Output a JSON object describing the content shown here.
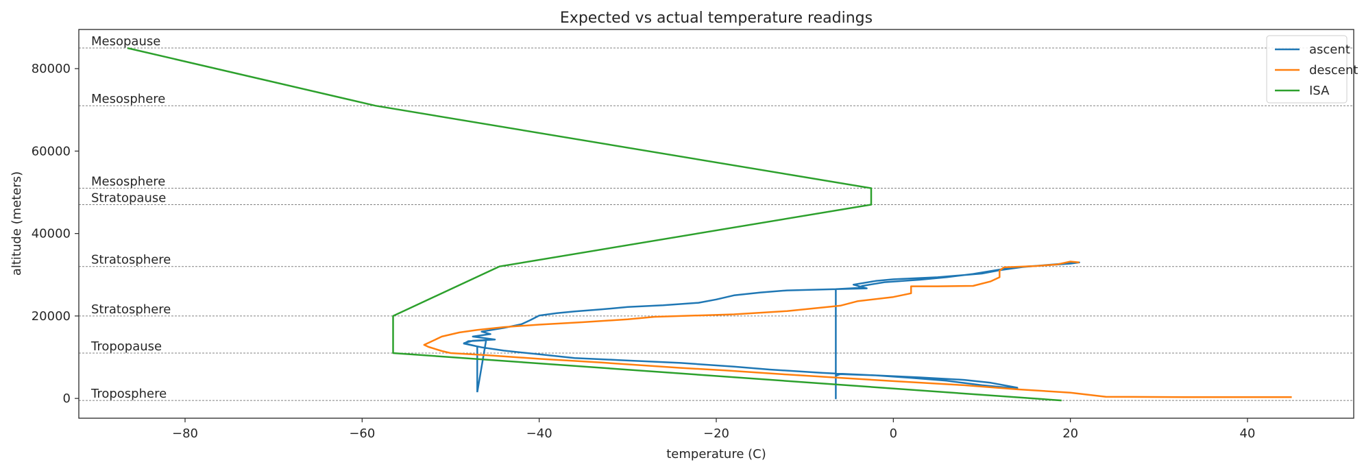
{
  "chart_data": {
    "type": "line",
    "title": "Expected vs actual temperature readings",
    "xlabel": "temperature (C)",
    "ylabel": "altitude (meters)",
    "xlim": [
      -92,
      52
    ],
    "ylim": [
      -4800,
      89500
    ],
    "xticks": [
      -80,
      -60,
      -40,
      -20,
      0,
      20,
      40
    ],
    "yticks": [
      0,
      20000,
      40000,
      60000,
      80000
    ],
    "grid": false,
    "legend": {
      "placement": "top-right",
      "entries": [
        "ascent",
        "descent",
        "ISA"
      ]
    },
    "reference_lines": [
      {
        "y": 85000,
        "label": "Mesopause"
      },
      {
        "y": 71000,
        "label": "Mesosphere"
      },
      {
        "y": 51000,
        "label": "Mesosphere"
      },
      {
        "y": 47000,
        "label": "Stratopause"
      },
      {
        "y": 32000,
        "label": "Stratosphere"
      },
      {
        "y": 20000,
        "label": "Stratosphere"
      },
      {
        "y": 11000,
        "label": "Tropopause"
      },
      {
        "y": -500,
        "label": "Troposphere"
      }
    ],
    "series": [
      {
        "name": "ascent",
        "color": "#1f77b4",
        "points": [
          [
            -47,
            1500
          ],
          [
            -47,
            12600
          ],
          [
            -48.5,
            13400
          ],
          [
            -47.5,
            14000
          ],
          [
            -45,
            14300
          ],
          [
            -47.5,
            15000
          ],
          [
            -45.5,
            15600
          ],
          [
            -46.5,
            16200
          ],
          [
            -44,
            17100
          ],
          [
            -42,
            18000
          ],
          [
            -41,
            19000
          ],
          [
            -40,
            20100
          ],
          [
            -38,
            20700
          ],
          [
            -36,
            21100
          ],
          [
            -33,
            21600
          ],
          [
            -30,
            22200
          ],
          [
            -26,
            22600
          ],
          [
            -22,
            23200
          ],
          [
            -20,
            24000
          ],
          [
            -18,
            25000
          ],
          [
            -15,
            25700
          ],
          [
            -12,
            26200
          ],
          [
            -6.5,
            26500
          ],
          [
            -6.5,
            0
          ],
          [
            -6.5,
            26500
          ],
          [
            -3,
            26700
          ],
          [
            -4.5,
            27600
          ],
          [
            -2,
            28500
          ],
          [
            0,
            28900
          ],
          [
            5,
            29400
          ],
          [
            10,
            30300
          ],
          [
            12,
            31100
          ],
          [
            15,
            32000
          ],
          [
            18,
            32400
          ],
          [
            20,
            32700
          ],
          [
            21,
            33000
          ],
          [
            13,
            31600
          ],
          [
            9,
            30200
          ],
          [
            6,
            29400
          ],
          [
            3,
            28800
          ],
          [
            -1,
            28200
          ],
          [
            -3.5,
            27300
          ],
          [
            -4,
            26800
          ],
          [
            -6.5,
            26500
          ],
          [
            -6.5,
            0
          ],
          [
            -6.5,
            5500
          ],
          [
            -6,
            5900
          ],
          [
            -2,
            5600
          ],
          [
            3,
            5100
          ],
          [
            8,
            4500
          ],
          [
            11,
            3800
          ],
          [
            14,
            2600
          ],
          [
            14,
            2400
          ],
          [
            10,
            3200
          ],
          [
            6,
            4300
          ],
          [
            2,
            5000
          ],
          [
            -2,
            5600
          ],
          [
            -8,
            6200
          ],
          [
            -14,
            7000
          ],
          [
            -18,
            7700
          ],
          [
            -24,
            8600
          ],
          [
            -31,
            9300
          ],
          [
            -36,
            9800
          ],
          [
            -40,
            10700
          ],
          [
            -44,
            11600
          ],
          [
            -46.5,
            12400
          ],
          [
            -48.5,
            13300
          ],
          [
            -48,
            13900
          ],
          [
            -46,
            14100
          ],
          [
            -47,
            1500
          ]
        ]
      },
      {
        "name": "descent",
        "color": "#ff7f0e",
        "points": [
          [
            45,
            300
          ],
          [
            40,
            300
          ],
          [
            33,
            300
          ],
          [
            24,
            400
          ],
          [
            20,
            1400
          ],
          [
            14,
            2200
          ],
          [
            8,
            3200
          ],
          [
            4,
            3700
          ],
          [
            0,
            4200
          ],
          [
            -6,
            5000
          ],
          [
            -12,
            5800
          ],
          [
            -19,
            6800
          ],
          [
            -24,
            7400
          ],
          [
            -33,
            8700
          ],
          [
            -40,
            9600
          ],
          [
            -46,
            10500
          ],
          [
            -50,
            11000
          ],
          [
            -51,
            11500
          ],
          [
            -52.5,
            12500
          ],
          [
            -53,
            13000
          ],
          [
            -52,
            14000
          ],
          [
            -51,
            15000
          ],
          [
            -49,
            16000
          ],
          [
            -47,
            16600
          ],
          [
            -44,
            17300
          ],
          [
            -40,
            17900
          ],
          [
            -35,
            18500
          ],
          [
            -30,
            19200
          ],
          [
            -27,
            19800
          ],
          [
            -18,
            20400
          ],
          [
            -12,
            21200
          ],
          [
            -6,
            22500
          ],
          [
            -4,
            23600
          ],
          [
            0,
            24600
          ],
          [
            2,
            25500
          ],
          [
            2,
            27200
          ],
          [
            5,
            27200
          ],
          [
            9,
            27300
          ],
          [
            11,
            28400
          ],
          [
            12,
            29400
          ],
          [
            12,
            31000
          ],
          [
            12.5,
            31800
          ],
          [
            16,
            32100
          ],
          [
            18.5,
            32500
          ],
          [
            20,
            33200
          ],
          [
            21,
            33000
          ]
        ]
      },
      {
        "name": "ISA",
        "color": "#2ca02c",
        "points": [
          [
            19,
            -500
          ],
          [
            -56.5,
            11000
          ],
          [
            -56.5,
            20000
          ],
          [
            -44.5,
            32000
          ],
          [
            -2.5,
            47000
          ],
          [
            -2.5,
            51000
          ],
          [
            -58.5,
            71000
          ],
          [
            -86.5,
            85000
          ]
        ]
      }
    ]
  }
}
